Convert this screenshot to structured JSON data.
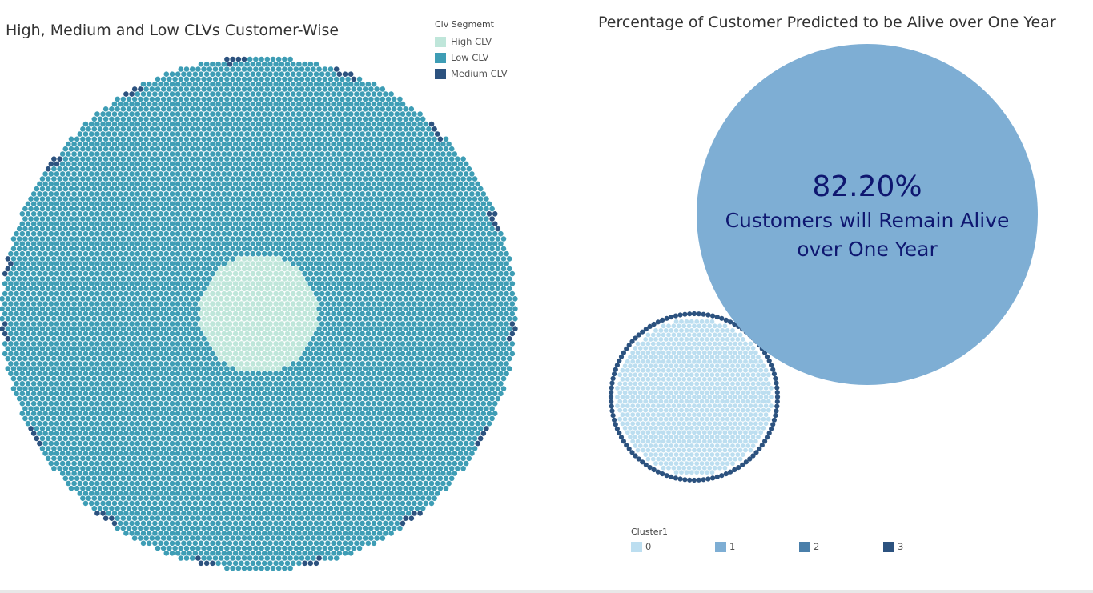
{
  "chart_data": [
    {
      "type": "packed-bubble",
      "title": "High, Medium and Low CLVs Customer-Wise",
      "legend": {
        "title": "Clv Segmemt",
        "placement": "top-right",
        "entries": [
          {
            "name": "High CLV",
            "color": "#bfe6da"
          },
          {
            "name": "Low CLV",
            "color": "#3e9db5"
          },
          {
            "name": "Medium CLV",
            "color": "#2c527f"
          }
        ]
      }
    },
    {
      "type": "packed-bubble",
      "title": "Percentage of Customer Predicted to be Alive over One Year",
      "highlight": {
        "value_text": "82.20%",
        "value": 82.2,
        "caption_lines": [
          "Customers will Remain Alive",
          "over One Year"
        ],
        "color": "#7eaed4"
      },
      "legend": {
        "title": "Cluster1",
        "placement": "bottom-left",
        "entries": [
          {
            "name": "0",
            "color": "#bcdef0"
          },
          {
            "name": "1",
            "color": "#7eaed4"
          },
          {
            "name": "2",
            "color": "#4a7faa"
          },
          {
            "name": "3",
            "color": "#2c527f"
          }
        ]
      }
    }
  ]
}
